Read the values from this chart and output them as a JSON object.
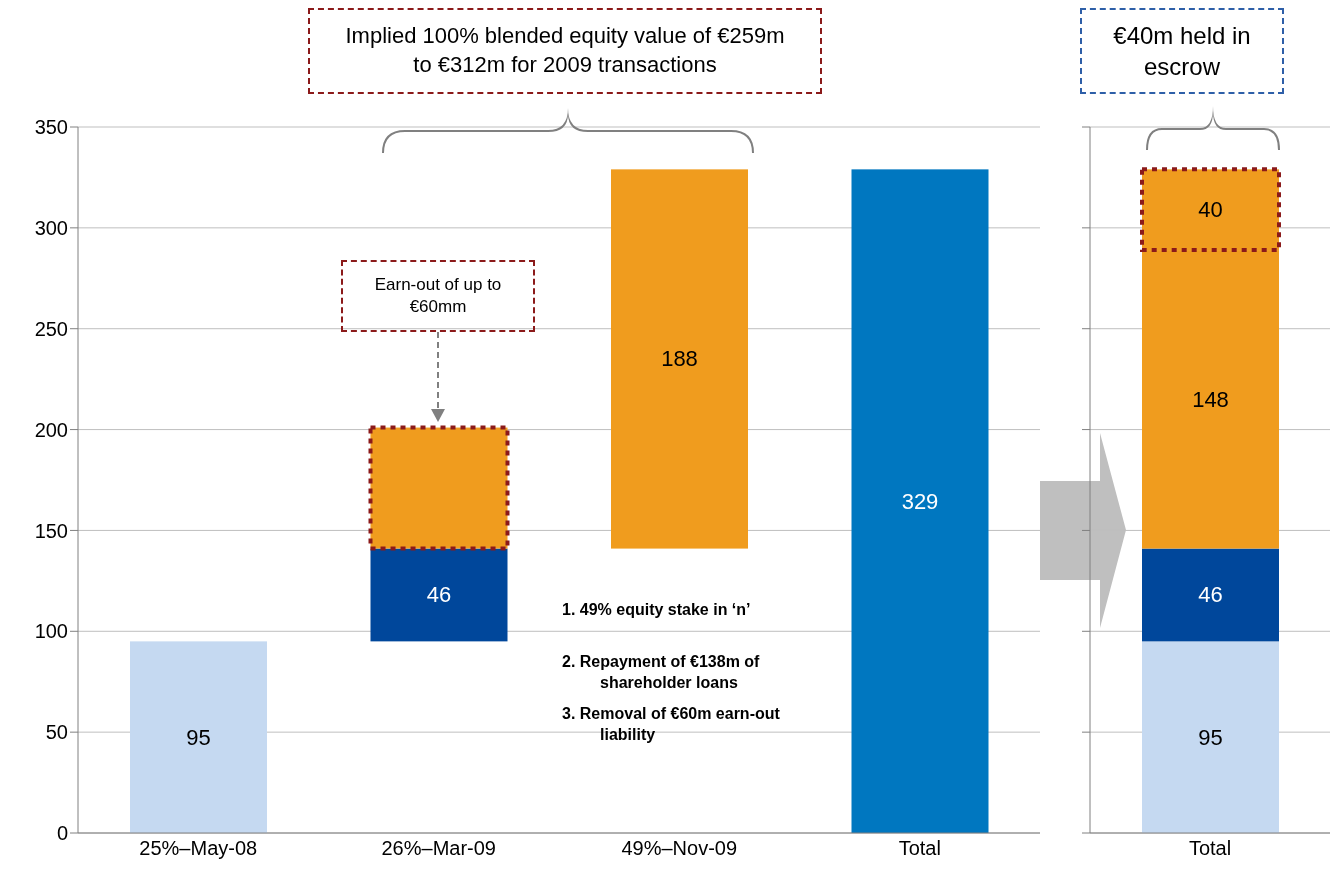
{
  "chart_data": [
    {
      "type": "bar",
      "categories": [
        "25%–May-08",
        "26%–Mar-09",
        "49%–Nov-09",
        "Total"
      ],
      "series": [
        {
          "color": "#c5d9f1",
          "values": [
            95,
            null,
            null,
            null
          ],
          "base": [
            0,
            null,
            null,
            null
          ],
          "value_labels": [
            "95",
            null,
            null,
            null
          ]
        },
        {
          "color": "#00479b",
          "values": [
            null,
            46,
            null,
            null
          ],
          "base": [
            null,
            95,
            null,
            null
          ],
          "value_labels": [
            null,
            "46",
            null,
            null
          ]
        },
        {
          "color": "#f09c1e",
          "values": [
            null,
            60,
            null,
            null
          ],
          "base": [
            null,
            141,
            null,
            null
          ],
          "line_style": "dotted"
        },
        {
          "color": "#f09c1e",
          "values": [
            null,
            null,
            188,
            null
          ],
          "base": [
            null,
            null,
            141,
            null
          ],
          "value_labels": [
            null,
            null,
            "188",
            null
          ]
        },
        {
          "color": "#0077c0",
          "values": [
            null,
            null,
            null,
            329
          ],
          "base": [
            null,
            null,
            null,
            0
          ],
          "value_labels": [
            null,
            null,
            null,
            "329"
          ]
        }
      ],
      "ylim": [
        0,
        350
      ],
      "yticks": [
        0,
        50,
        100,
        150,
        200,
        250,
        300,
        350
      ],
      "grid": "y",
      "annotations": [
        "Implied 100% blended equity value of €259m to €312m for 2009 transactions",
        "Earn-out of up to €60mm",
        "1. 49% equity stake in ‘n’",
        "2. Repayment of €138m of shareholder loans",
        "3. Removal of €60m earn-out liability"
      ]
    },
    {
      "type": "bar",
      "stacked": true,
      "categories": [
        "Total"
      ],
      "series": [
        {
          "color": "#c5d9f1",
          "values": [
            95
          ],
          "value_labels": [
            "95"
          ]
        },
        {
          "color": "#00479b",
          "values": [
            46
          ],
          "value_labels": [
            "46"
          ]
        },
        {
          "color": "#f09c1e",
          "values": [
            148
          ],
          "value_labels": [
            "148"
          ]
        },
        {
          "color": "#f09c1e",
          "values": [
            40
          ],
          "value_labels": [
            "40"
          ],
          "line_style": "dotted"
        }
      ],
      "ylim": [
        0,
        350
      ],
      "yticks": [
        0,
        50,
        100,
        150,
        200,
        250,
        300,
        350
      ],
      "grid": "y",
      "tick_labels": "x",
      "annotations": [
        "€40m held in escrow"
      ]
    }
  ]
}
